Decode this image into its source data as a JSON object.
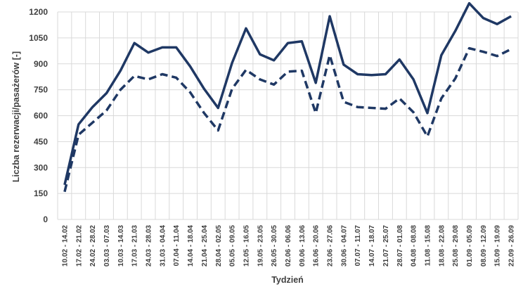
{
  "chart_data": {
    "type": "line",
    "title": "",
    "xlabel": "Tydzień",
    "ylabel": "Liczba rezerwacji/pasażerów [-]",
    "ylim": [
      0,
      1200
    ],
    "yticks": [
      "0",
      "150",
      "300",
      "450",
      "600",
      "750",
      "900",
      "1050",
      "1200"
    ],
    "grid": true,
    "legend": "none",
    "categories": [
      "10.02 - 14.02",
      "17.02 - 21.02",
      "24.02 - 28.02",
      "03.03 - 07.03",
      "10.03 - 14.03",
      "17.03 - 21.03",
      "24.03 - 28.03",
      "31.03 - 04.04",
      "07.04 - 11.04",
      "14.04 - 18.04",
      "21.04 - 25.04",
      "28.04 - 02.05",
      "05.05 - 09.05",
      "12.05 - 16.05",
      "19.05 - 23.05",
      "26.05 - 30.05",
      "02.06 - 06.06",
      "09.06 - 13.06",
      "16.06 - 20.06",
      "23.06 - 27.06",
      "30.06 - 04.07",
      "07.07 - 11.07",
      "14.07 - 18.07",
      "21.07 - 25.07",
      "28.07 - 01.08",
      "04.08 - 08.08",
      "11.08 - 15.08",
      "18.08 - 22.08",
      "25.08 - 29.08",
      "01.09 - 05.09",
      "08.09 - 12.09",
      "15.09 - 19.09",
      "22.09 - 26.09"
    ],
    "series": [
      {
        "style": "solid",
        "color": "#1f3864",
        "values": [
          200,
          550,
          650,
          730,
          860,
          1020,
          965,
          995,
          995,
          885,
          755,
          645,
          905,
          1105,
          955,
          920,
          1020,
          1030,
          790,
          1175,
          895,
          840,
          835,
          840,
          925,
          810,
          615,
          950,
          1090,
          1250,
          1165,
          1130,
          1175
        ]
      },
      {
        "style": "dashed",
        "color": "#1f3864",
        "values": [
          160,
          490,
          560,
          630,
          750,
          830,
          810,
          840,
          820,
          735,
          615,
          515,
          755,
          865,
          810,
          780,
          855,
          860,
          615,
          950,
          680,
          650,
          645,
          640,
          700,
          620,
          480,
          700,
          815,
          990,
          970,
          945,
          985
        ]
      }
    ]
  }
}
